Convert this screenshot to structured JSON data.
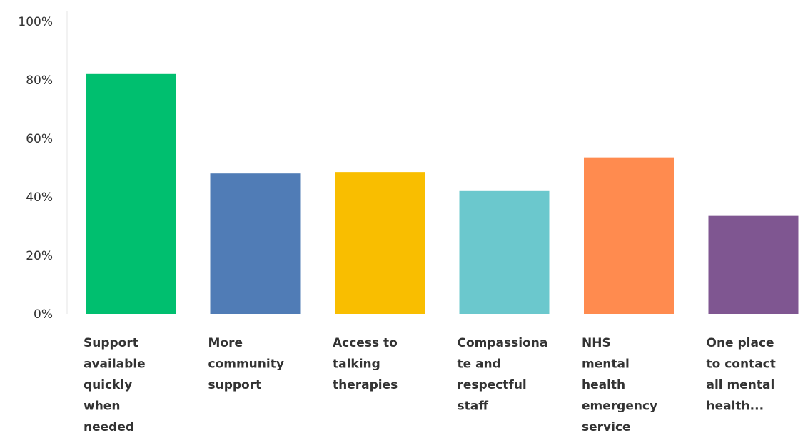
{
  "chart_data": {
    "type": "bar",
    "title": "",
    "xlabel": "",
    "ylabel": "",
    "ylim": [
      0,
      100
    ],
    "y_ticks": [
      "0%",
      "20%",
      "40%",
      "60%",
      "80%",
      "100%"
    ],
    "grid": false,
    "categories": [
      "Support available quickly when needed",
      "More community support",
      "Access to talking therapies",
      "Compassionate and respectful staff",
      "NHS mental health emergency service",
      "One place to contact all mental health..."
    ],
    "category_lines": [
      [
        "Support",
        "available",
        "quickly",
        "when",
        "needed"
      ],
      [
        "More",
        "community",
        "support"
      ],
      [
        "Access to",
        "talking",
        "therapies"
      ],
      [
        "Compassiona",
        "te and",
        "respectful",
        "staff"
      ],
      [
        "NHS",
        "mental",
        "health",
        "emergency",
        "service"
      ],
      [
        "One place",
        "to contact",
        "all mental",
        "health..."
      ]
    ],
    "values": [
      82,
      48,
      48.5,
      42,
      53.5,
      33.5
    ],
    "colors": [
      "#00bf6f",
      "#507cb6",
      "#f9be00",
      "#6bc8cd",
      "#ff8b4f",
      "#7f5691"
    ]
  }
}
